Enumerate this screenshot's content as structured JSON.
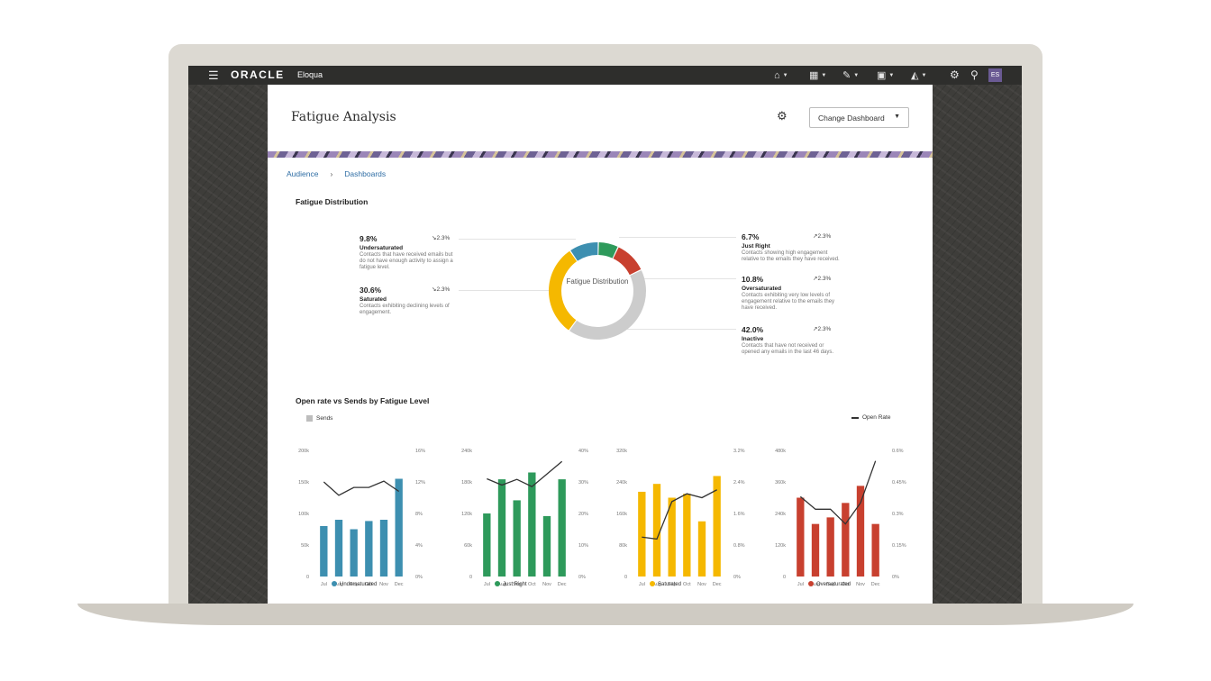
{
  "app": {
    "brand": "ORACLE",
    "product": "Eloqua",
    "user_initials": "ES"
  },
  "topbar": {
    "menu_icon": "hamburger-icon",
    "nav": [
      {
        "icon": "home-icon"
      },
      {
        "icon": "grid-icon"
      },
      {
        "icon": "pencil-icon"
      },
      {
        "icon": "contacts-icon"
      },
      {
        "icon": "analytics-icon"
      }
    ],
    "settings_icon": "gear-icon",
    "search_icon": "search-icon"
  },
  "page": {
    "title": "Fatigue Analysis",
    "change_dashboard_label": "Change Dashboard"
  },
  "breadcrumb": [
    "Audience",
    "Dashboards"
  ],
  "distribution": {
    "section_title": "Fatigue Distribution",
    "center_label": "Fatigue Distribution",
    "items": [
      {
        "pct": "9.8%",
        "trend": "2.3%",
        "trend_dir": "down",
        "name": "Undersaturated",
        "desc": "Contacts that have received emails but do not have enough activity to assign a fatigue level.",
        "color": "#3d8fb0",
        "value": 9.8
      },
      {
        "pct": "30.6%",
        "trend": "2.3%",
        "trend_dir": "down",
        "name": "Saturated",
        "desc": "Contacts exhibiting declining levels of engagement.",
        "color": "#f5b800",
        "value": 30.6
      },
      {
        "pct": "6.7%",
        "trend": "2.3%",
        "trend_dir": "up",
        "name": "Just Right",
        "desc": "Contacts showing high engagement relative to the emails they have received.",
        "color": "#2e9a5b",
        "value": 6.7
      },
      {
        "pct": "10.8%",
        "trend": "2.3%",
        "trend_dir": "up",
        "name": "Oversaturated",
        "desc": "Contacts exhibiting very low levels of engagement relative to the emails they have received.",
        "color": "#c8402f",
        "value": 10.8
      },
      {
        "pct": "42.0%",
        "trend": "2.3%",
        "trend_dir": "up",
        "name": "Inactive",
        "desc": "Contacts that have not received or opened any emails in the last 46 days.",
        "color": "#cccccc",
        "value": 42.0
      }
    ]
  },
  "open_rate": {
    "section_title": "Open rate vs Sends by Fatigue Level",
    "sends_legend": "Sends",
    "open_rate_legend": "Open Rate",
    "sends_color": "#bdbdbd",
    "line_color": "#333333"
  },
  "chart_data": [
    {
      "type": "bar",
      "series_name": "Undersaturated",
      "color": "#3d8fb0",
      "categories": [
        "Jul",
        "Aug",
        "Sep",
        "Oct",
        "Nov",
        "Dec"
      ],
      "sends": [
        80000,
        90000,
        75000,
        88000,
        90000,
        155000
      ],
      "open_rate": [
        12.0,
        10.3,
        11.3,
        11.3,
        12.1,
        10.8
      ],
      "left_ticks": [
        "0",
        "50k",
        "100k",
        "150k",
        "200k"
      ],
      "right_ticks": [
        "0%",
        "4%",
        "8%",
        "12%",
        "16%"
      ],
      "left_max": 200000,
      "right_max": 16
    },
    {
      "type": "bar",
      "series_name": "Just Right",
      "color": "#2e9a5b",
      "categories": [
        "Jul",
        "Aug",
        "Sep",
        "Oct",
        "Nov",
        "Dec"
      ],
      "sends": [
        120000,
        185000,
        145000,
        198000,
        115000,
        185000
      ],
      "open_rate": [
        31.0,
        29.0,
        30.8,
        28.5,
        32.5,
        36.5
      ],
      "left_ticks": [
        "0",
        "60k",
        "120k",
        "180k",
        "240k"
      ],
      "right_ticks": [
        "0%",
        "10%",
        "20%",
        "30%",
        "40%"
      ],
      "left_max": 240000,
      "right_max": 40
    },
    {
      "type": "bar",
      "series_name": "Saturated",
      "color": "#f5b800",
      "categories": [
        "Jul",
        "Aug",
        "Sep",
        "Oct",
        "Nov",
        "Dec"
      ],
      "sends": [
        215000,
        235000,
        200000,
        210000,
        140000,
        255000
      ],
      "open_rate": [
        1.0,
        0.95,
        1.9,
        2.1,
        2.0,
        2.2
      ],
      "left_ticks": [
        "0",
        "80k",
        "160k",
        "240k",
        "320k"
      ],
      "right_ticks": [
        "0%",
        "0.8%",
        "1.6%",
        "2.4%",
        "3.2%"
      ],
      "left_max": 320000,
      "right_max": 3.2
    },
    {
      "type": "bar",
      "series_name": "Oversaturated",
      "color": "#c8402f",
      "categories": [
        "Jul",
        "Aug",
        "Sep",
        "Oct",
        "Nov",
        "Dec"
      ],
      "sends": [
        300000,
        200000,
        225000,
        280000,
        345000,
        200000
      ],
      "open_rate": [
        0.38,
        0.32,
        0.32,
        0.25,
        0.35,
        0.55
      ],
      "left_ticks": [
        "0",
        "120k",
        "240k",
        "360k",
        "480k"
      ],
      "right_ticks": [
        "0%",
        "0.15%",
        "0.3%",
        "0.45%",
        "0.6%"
      ],
      "left_max": 480000,
      "right_max": 0.6
    }
  ]
}
